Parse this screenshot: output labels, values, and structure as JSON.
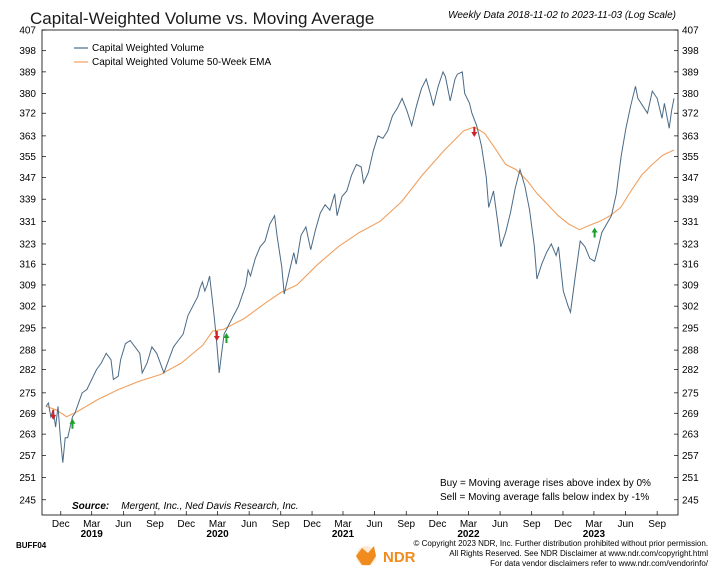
{
  "title": "Capital-Weighted Volume vs. Moving Average",
  "subtitle": "Weekly Data 2018-11-02 to 2023-11-03 (Log Scale)",
  "legend": [
    {
      "label": "Capital Weighted Volume",
      "color": "#4a6a86"
    },
    {
      "label": "Capital Weighted Volume 50-Week EMA",
      "color": "#f0a060"
    }
  ],
  "notes": {
    "buy": "Buy = Moving average rises above index by 0%",
    "sell": "Sell = Moving average falls below index by -1%"
  },
  "source": {
    "label": "Source:",
    "text": "Mergent, Inc., Ned Davis Research, Inc."
  },
  "code": "BUFF04",
  "copyright": [
    "© Copyright 2023 NDR, Inc. Further distribution prohibited without prior permission.",
    "All Rights Reserved. See NDR Disclaimer at www.ndr.com/copyright.html",
    "For data vendor disclaimers refer to www.ndr.com/vendorinfo/"
  ],
  "logo": {
    "text": "NDR",
    "icon": "bull-logo-icon",
    "color": "#f08c1e"
  },
  "colors": {
    "signal_buy": "#1e9e2a",
    "signal_sell": "#d0202a"
  },
  "chart_data": {
    "type": "line",
    "scale": "log",
    "ylim": [
      241,
      407
    ],
    "xlim": [
      "2018-11-02",
      "2023-11-03"
    ],
    "y_ticks": [
      245,
      251,
      257,
      263,
      269,
      275,
      282,
      288,
      295,
      302,
      309,
      316,
      323,
      331,
      339,
      347,
      355,
      363,
      372,
      380,
      389,
      398,
      407
    ],
    "x_ticks": [
      {
        "label": "Dec",
        "date": "2018-12-15"
      },
      {
        "label": "Mar",
        "date": "2019-03-15"
      },
      {
        "label": "Jun",
        "date": "2019-06-15"
      },
      {
        "label": "Sep",
        "date": "2019-09-15"
      },
      {
        "label": "Dec",
        "date": "2019-12-15"
      },
      {
        "label": "Mar",
        "date": "2020-03-15"
      },
      {
        "label": "Jun",
        "date": "2020-06-15"
      },
      {
        "label": "Sep",
        "date": "2020-09-15"
      },
      {
        "label": "Dec",
        "date": "2020-12-15"
      },
      {
        "label": "Mar",
        "date": "2021-03-15"
      },
      {
        "label": "Jun",
        "date": "2021-06-15"
      },
      {
        "label": "Sep",
        "date": "2021-09-15"
      },
      {
        "label": "Dec",
        "date": "2021-12-15"
      },
      {
        "label": "Mar",
        "date": "2022-03-15"
      },
      {
        "label": "Jun",
        "date": "2022-06-15"
      },
      {
        "label": "Sep",
        "date": "2022-09-15"
      },
      {
        "label": "Dec",
        "date": "2022-12-15"
      },
      {
        "label": "Mar",
        "date": "2023-03-15"
      },
      {
        "label": "Jun",
        "date": "2023-06-15"
      },
      {
        "label": "Sep",
        "date": "2023-09-15"
      }
    ],
    "year_labels": [
      {
        "label": "2019",
        "date": "2019-03-15"
      },
      {
        "label": "2020",
        "date": "2020-03-15"
      },
      {
        "label": "2021",
        "date": "2021-03-15"
      },
      {
        "label": "2022",
        "date": "2022-03-15"
      },
      {
        "label": "2023",
        "date": "2023-03-15"
      }
    ],
    "series": [
      {
        "name": "Capital Weighted Volume",
        "color": "#4a6a86",
        "points": [
          [
            "2018-11-02",
            271
          ],
          [
            "2018-11-09",
            272
          ],
          [
            "2018-11-16",
            268
          ],
          [
            "2018-11-23",
            270
          ],
          [
            "2018-11-30",
            265
          ],
          [
            "2018-12-07",
            271
          ],
          [
            "2018-12-14",
            262
          ],
          [
            "2018-12-21",
            255
          ],
          [
            "2018-12-28",
            262
          ],
          [
            "2019-01-04",
            262
          ],
          [
            "2019-01-11",
            265
          ],
          [
            "2019-01-18",
            268
          ],
          [
            "2019-01-25",
            269
          ],
          [
            "2019-02-01",
            271
          ],
          [
            "2019-02-15",
            275
          ],
          [
            "2019-03-01",
            276
          ],
          [
            "2019-03-15",
            279
          ],
          [
            "2019-03-29",
            282
          ],
          [
            "2019-04-12",
            284
          ],
          [
            "2019-04-26",
            287
          ],
          [
            "2019-05-10",
            285
          ],
          [
            "2019-05-17",
            279
          ],
          [
            "2019-05-31",
            280
          ],
          [
            "2019-06-07",
            285
          ],
          [
            "2019-06-21",
            290
          ],
          [
            "2019-07-05",
            291
          ],
          [
            "2019-07-19",
            289
          ],
          [
            "2019-08-02",
            287
          ],
          [
            "2019-08-09",
            281
          ],
          [
            "2019-08-23",
            284
          ],
          [
            "2019-09-06",
            289
          ],
          [
            "2019-09-20",
            287
          ],
          [
            "2019-10-04",
            283
          ],
          [
            "2019-10-11",
            281
          ],
          [
            "2019-10-25",
            285
          ],
          [
            "2019-11-08",
            289
          ],
          [
            "2019-11-22",
            291
          ],
          [
            "2019-12-06",
            293
          ],
          [
            "2019-12-20",
            299
          ],
          [
            "2020-01-03",
            302
          ],
          [
            "2020-01-17",
            305
          ],
          [
            "2020-01-24",
            308
          ],
          [
            "2020-01-31",
            310
          ],
          [
            "2020-02-07",
            307
          ],
          [
            "2020-02-14",
            309
          ],
          [
            "2020-02-21",
            312
          ],
          [
            "2020-02-28",
            305
          ],
          [
            "2020-03-06",
            298
          ],
          [
            "2020-03-13",
            290
          ],
          [
            "2020-03-20",
            281
          ],
          [
            "2020-03-27",
            287
          ],
          [
            "2020-04-03",
            293
          ],
          [
            "2020-04-17",
            296
          ],
          [
            "2020-05-01",
            299
          ],
          [
            "2020-05-15",
            302
          ],
          [
            "2020-06-05",
            309
          ],
          [
            "2020-06-12",
            314
          ],
          [
            "2020-06-19",
            312
          ],
          [
            "2020-07-03",
            318
          ],
          [
            "2020-07-17",
            322
          ],
          [
            "2020-07-31",
            324
          ],
          [
            "2020-08-14",
            330
          ],
          [
            "2020-08-28",
            333
          ],
          [
            "2020-09-04",
            326
          ],
          [
            "2020-09-18",
            315
          ],
          [
            "2020-09-25",
            306
          ],
          [
            "2020-10-09",
            313
          ],
          [
            "2020-10-23",
            320
          ],
          [
            "2020-10-30",
            316
          ],
          [
            "2020-11-13",
            326
          ],
          [
            "2020-11-27",
            329
          ],
          [
            "2020-12-11",
            321
          ],
          [
            "2020-12-25",
            328
          ],
          [
            "2021-01-08",
            334
          ],
          [
            "2021-01-22",
            337
          ],
          [
            "2021-02-05",
            335
          ],
          [
            "2021-02-19",
            341
          ],
          [
            "2021-02-26",
            333
          ],
          [
            "2021-03-12",
            340
          ],
          [
            "2021-03-26",
            342
          ],
          [
            "2021-04-09",
            348
          ],
          [
            "2021-04-23",
            352
          ],
          [
            "2021-05-07",
            351
          ],
          [
            "2021-05-14",
            345
          ],
          [
            "2021-05-28",
            349
          ],
          [
            "2021-06-11",
            357
          ],
          [
            "2021-06-25",
            363
          ],
          [
            "2021-07-09",
            362
          ],
          [
            "2021-07-23",
            365
          ],
          [
            "2021-08-06",
            371
          ],
          [
            "2021-08-20",
            374
          ],
          [
            "2021-09-03",
            378
          ],
          [
            "2021-09-17",
            373
          ],
          [
            "2021-10-01",
            367
          ],
          [
            "2021-10-15",
            375
          ],
          [
            "2021-10-29",
            382
          ],
          [
            "2021-11-12",
            386
          ],
          [
            "2021-11-26",
            379
          ],
          [
            "2021-12-03",
            375
          ],
          [
            "2021-12-17",
            383
          ],
          [
            "2021-12-31",
            389
          ],
          [
            "2022-01-07",
            387
          ],
          [
            "2022-01-21",
            377
          ],
          [
            "2022-02-04",
            386
          ],
          [
            "2022-02-11",
            388
          ],
          [
            "2022-02-25",
            389
          ],
          [
            "2022-03-04",
            380
          ],
          [
            "2022-03-18",
            376
          ],
          [
            "2022-03-25",
            372
          ],
          [
            "2022-04-08",
            367
          ],
          [
            "2022-04-22",
            359
          ],
          [
            "2022-05-06",
            347
          ],
          [
            "2022-05-13",
            336
          ],
          [
            "2022-05-27",
            342
          ],
          [
            "2022-06-10",
            329
          ],
          [
            "2022-06-17",
            322
          ],
          [
            "2022-07-01",
            327
          ],
          [
            "2022-07-15",
            334
          ],
          [
            "2022-07-29",
            343
          ],
          [
            "2022-08-12",
            350
          ],
          [
            "2022-08-26",
            344
          ],
          [
            "2022-09-09",
            335
          ],
          [
            "2022-09-23",
            322
          ],
          [
            "2022-09-30",
            311
          ],
          [
            "2022-10-14",
            316
          ],
          [
            "2022-10-28",
            320
          ],
          [
            "2022-11-11",
            323
          ],
          [
            "2022-11-25",
            319
          ],
          [
            "2022-12-02",
            322
          ],
          [
            "2022-12-16",
            307
          ],
          [
            "2022-12-30",
            302
          ],
          [
            "2023-01-06",
            300
          ],
          [
            "2023-01-20",
            312
          ],
          [
            "2023-02-03",
            324
          ],
          [
            "2023-02-17",
            322
          ],
          [
            "2023-03-03",
            318
          ],
          [
            "2023-03-17",
            317
          ],
          [
            "2023-03-24",
            320
          ],
          [
            "2023-04-07",
            327
          ],
          [
            "2023-04-21",
            330
          ],
          [
            "2023-05-05",
            333
          ],
          [
            "2023-05-19",
            341
          ],
          [
            "2023-06-02",
            355
          ],
          [
            "2023-06-16",
            366
          ],
          [
            "2023-06-30",
            375
          ],
          [
            "2023-07-14",
            383
          ],
          [
            "2023-07-21",
            378
          ],
          [
            "2023-08-04",
            375
          ],
          [
            "2023-08-18",
            372
          ],
          [
            "2023-09-01",
            381
          ],
          [
            "2023-09-15",
            378
          ],
          [
            "2023-09-29",
            370
          ],
          [
            "2023-10-06",
            376
          ],
          [
            "2023-10-20",
            366
          ],
          [
            "2023-10-27",
            373
          ],
          [
            "2023-11-03",
            378
          ]
        ]
      },
      {
        "name": "Capital Weighted Volume 50-Week EMA",
        "color": "#f0a060",
        "points": [
          [
            "2018-11-02",
            271
          ],
          [
            "2018-12-01",
            270
          ],
          [
            "2019-01-01",
            268
          ],
          [
            "2019-02-01",
            269.5
          ],
          [
            "2019-04-01",
            273
          ],
          [
            "2019-06-01",
            276
          ],
          [
            "2019-08-01",
            278.5
          ],
          [
            "2019-10-01",
            280.5
          ],
          [
            "2019-12-01",
            284
          ],
          [
            "2020-02-01",
            289.5
          ],
          [
            "2020-03-01",
            294
          ],
          [
            "2020-04-01",
            294.5
          ],
          [
            "2020-06-01",
            298
          ],
          [
            "2020-08-01",
            303
          ],
          [
            "2020-09-15",
            306.5
          ],
          [
            "2020-11-01",
            309
          ],
          [
            "2021-01-01",
            316
          ],
          [
            "2021-03-01",
            322
          ],
          [
            "2021-05-01",
            327
          ],
          [
            "2021-07-01",
            331
          ],
          [
            "2021-09-01",
            338
          ],
          [
            "2021-11-01",
            348
          ],
          [
            "2022-01-01",
            357
          ],
          [
            "2022-03-01",
            365
          ],
          [
            "2022-04-01",
            366.5
          ],
          [
            "2022-05-01",
            364
          ],
          [
            "2022-06-01",
            358
          ],
          [
            "2022-07-01",
            352
          ],
          [
            "2022-08-01",
            350
          ],
          [
            "2022-09-01",
            346
          ],
          [
            "2022-10-01",
            341
          ],
          [
            "2022-11-01",
            337
          ],
          [
            "2022-12-01",
            333
          ],
          [
            "2023-01-01",
            330
          ],
          [
            "2023-02-01",
            328
          ],
          [
            "2023-03-01",
            329.5
          ],
          [
            "2023-04-01",
            331
          ],
          [
            "2023-05-01",
            333
          ],
          [
            "2023-06-01",
            336
          ],
          [
            "2023-07-01",
            342
          ],
          [
            "2023-08-01",
            348
          ],
          [
            "2023-09-01",
            352
          ],
          [
            "2023-10-01",
            355.5
          ],
          [
            "2023-11-03",
            357.5
          ]
        ]
      }
    ],
    "signals": [
      {
        "type": "sell",
        "date": "2018-11-23",
        "value": 270
      },
      {
        "type": "buy",
        "date": "2019-01-18",
        "value": 268
      },
      {
        "type": "sell",
        "date": "2020-03-13",
        "value": 294
      },
      {
        "type": "buy",
        "date": "2020-04-10",
        "value": 294
      },
      {
        "type": "sell",
        "date": "2022-04-01",
        "value": 366.5
      },
      {
        "type": "buy",
        "date": "2023-03-17",
        "value": 329.5
      }
    ]
  }
}
